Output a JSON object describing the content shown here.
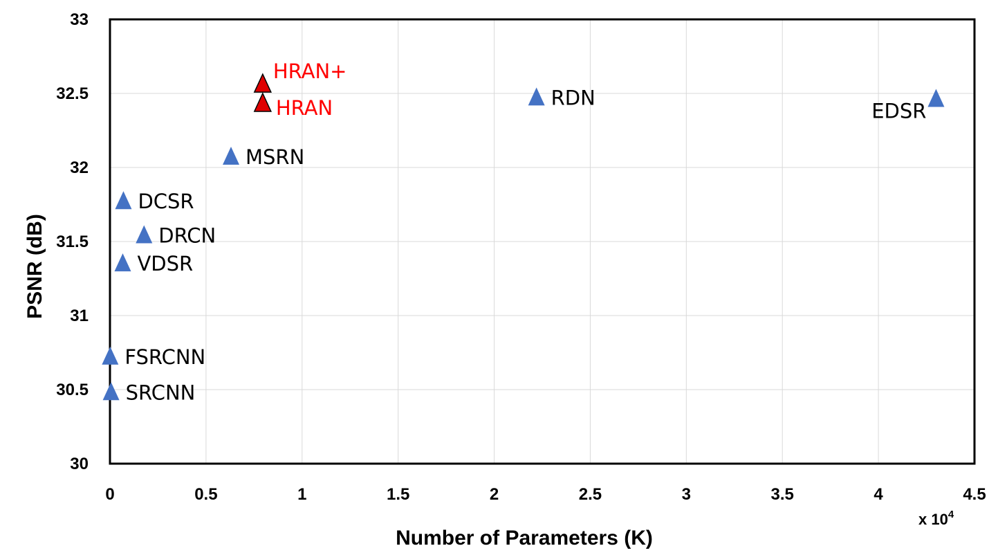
{
  "chart_data": {
    "type": "scatter",
    "xlabel": "Number of Parameters (K)",
    "ylabel": "PSNR (dB)",
    "x_multiplier_label": "x 10",
    "x_multiplier_exponent": "4",
    "xlim": [
      0,
      4.5
    ],
    "ylim": [
      30,
      33
    ],
    "xticks": [
      "0",
      "0.5",
      "1",
      "1.5",
      "2",
      "2.5",
      "3",
      "3.5",
      "4",
      "4.5"
    ],
    "yticks": [
      "30",
      "30.5",
      "31",
      "31.5",
      "32",
      "32.5",
      "33"
    ],
    "grid": true,
    "marker": "triangle",
    "colors": {
      "baseline": "#4472C4",
      "highlight": "#FF0000",
      "highlight_marker": "#E00000"
    },
    "points": [
      {
        "label": "SRCNN",
        "x": 0.0057,
        "y": 30.48,
        "highlight": false,
        "label_side": "right"
      },
      {
        "label": "FSRCNN",
        "x": 0.0012,
        "y": 30.72,
        "highlight": false,
        "label_side": "right"
      },
      {
        "label": "VDSR",
        "x": 0.0665,
        "y": 31.35,
        "highlight": false,
        "label_side": "right"
      },
      {
        "label": "DRCN",
        "x": 0.1774,
        "y": 31.54,
        "highlight": false,
        "label_side": "right"
      },
      {
        "label": "DCSR",
        "x": 0.07,
        "y": 31.77,
        "highlight": false,
        "label_side": "right"
      },
      {
        "label": "MSRN",
        "x": 0.63,
        "y": 32.07,
        "highlight": false,
        "label_side": "right"
      },
      {
        "label": "HRAN",
        "x": 0.795,
        "y": 32.43,
        "highlight": true,
        "label_side": "right"
      },
      {
        "label": "HRAN+",
        "x": 0.795,
        "y": 32.56,
        "highlight": true,
        "label_side": "right"
      },
      {
        "label": "RDN",
        "x": 2.22,
        "y": 32.47,
        "highlight": false,
        "label_side": "right"
      },
      {
        "label": "EDSR",
        "x": 4.3,
        "y": 32.46,
        "highlight": false,
        "label_side": "left"
      }
    ]
  }
}
